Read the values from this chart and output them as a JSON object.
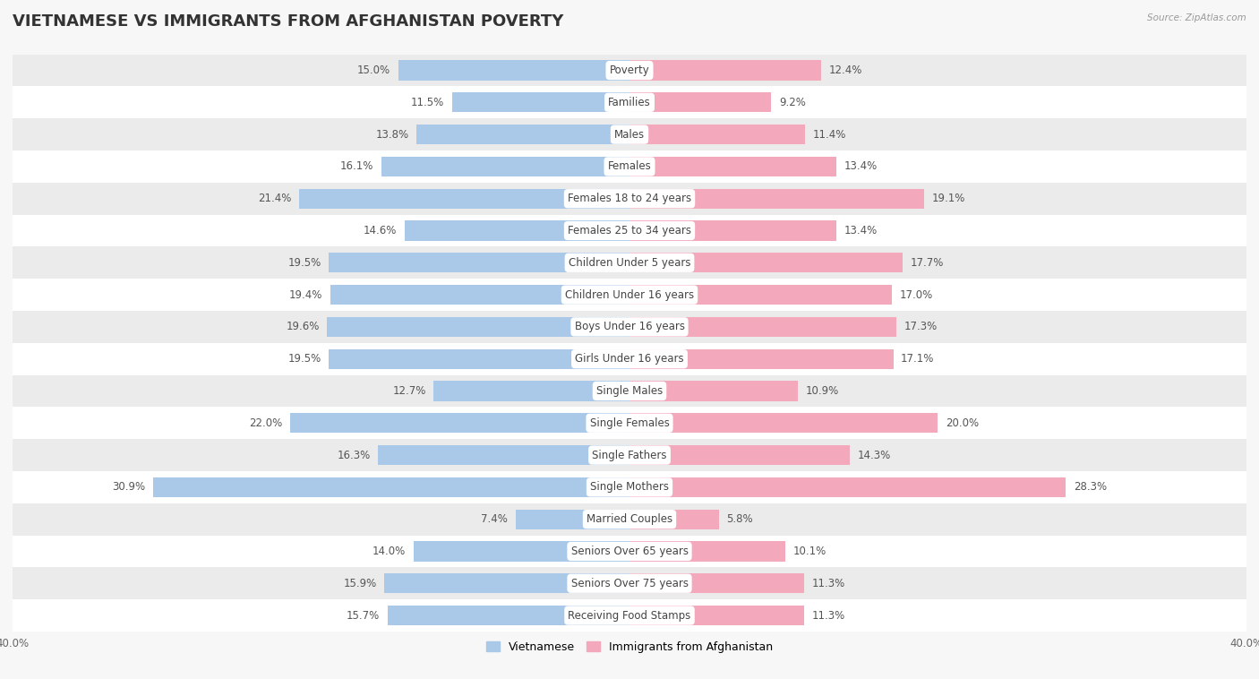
{
  "title": "VIETNAMESE VS IMMIGRANTS FROM AFGHANISTAN POVERTY",
  "source": "Source: ZipAtlas.com",
  "categories": [
    "Poverty",
    "Families",
    "Males",
    "Females",
    "Females 18 to 24 years",
    "Females 25 to 34 years",
    "Children Under 5 years",
    "Children Under 16 years",
    "Boys Under 16 years",
    "Girls Under 16 years",
    "Single Males",
    "Single Females",
    "Single Fathers",
    "Single Mothers",
    "Married Couples",
    "Seniors Over 65 years",
    "Seniors Over 75 years",
    "Receiving Food Stamps"
  ],
  "vietnamese": [
    15.0,
    11.5,
    13.8,
    16.1,
    21.4,
    14.6,
    19.5,
    19.4,
    19.6,
    19.5,
    12.7,
    22.0,
    16.3,
    30.9,
    7.4,
    14.0,
    15.9,
    15.7
  ],
  "afghanistan": [
    12.4,
    9.2,
    11.4,
    13.4,
    19.1,
    13.4,
    17.7,
    17.0,
    17.3,
    17.1,
    10.9,
    20.0,
    14.3,
    28.3,
    5.8,
    10.1,
    11.3,
    11.3
  ],
  "viet_color": "#aac9e8",
  "afghan_color": "#f4a8bc",
  "viet_label": "Vietnamese",
  "afghan_label": "Immigrants from Afghanistan",
  "xlim": 40.0,
  "bar_height": 0.62,
  "background_color": "#f7f7f7",
  "row_light_color": "#ffffff",
  "row_dark_color": "#ebebeb",
  "title_fontsize": 13,
  "label_fontsize": 8.5,
  "tick_fontsize": 8.5,
  "value_fontsize": 8.5
}
